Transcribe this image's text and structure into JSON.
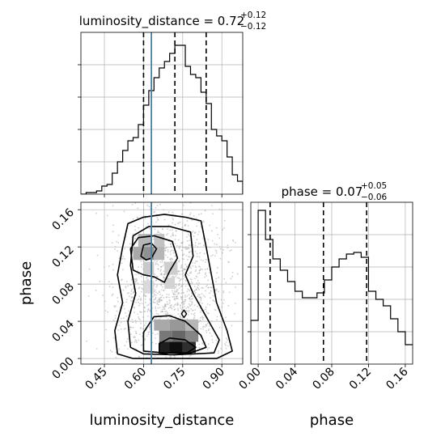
{
  "chart_data": {
    "type": "corner",
    "parameters": [
      "luminosity_distance",
      "phase"
    ],
    "truth": {
      "luminosity_distance": 0.63
    },
    "colors": {
      "truth_line": "#4c7fa0",
      "hist_line": "#000000",
      "quantile_line": "#000000",
      "grid": "#b0b0b0",
      "scatter": "#a6a6a6"
    },
    "grid": true,
    "panels": [
      {
        "id": "luminosity_distance_hist",
        "type": "histogram",
        "title": {
          "main": "luminosity_distance = 0.72",
          "superscript": "+0.12",
          "subscript": "−0.12"
        },
        "xlim": [
          0.36,
          0.98
        ],
        "ylim": [
          0,
          100
        ],
        "bin_edges": [
          0.36,
          0.38,
          0.4,
          0.42,
          0.44,
          0.46,
          0.48,
          0.5,
          0.52,
          0.54,
          0.56,
          0.58,
          0.6,
          0.62,
          0.64,
          0.66,
          0.68,
          0.7,
          0.72,
          0.74,
          0.76,
          0.78,
          0.8,
          0.82,
          0.84,
          0.86,
          0.88,
          0.9,
          0.92,
          0.94,
          0.96,
          0.98
        ],
        "counts": [
          0,
          1,
          1,
          2,
          5,
          6,
          13,
          20,
          27,
          33,
          35,
          43,
          55,
          64,
          72,
          78,
          82,
          87,
          92,
          92,
          79,
          74,
          72,
          63,
          56,
          40,
          36,
          33,
          23,
          12,
          8
        ],
        "quantiles": [
          0.6,
          0.72,
          0.84
        ]
      },
      {
        "id": "phase_hist",
        "type": "histogram",
        "title": {
          "main": "phase = 0.07",
          "superscript": "+0.05",
          "subscript": "−0.06"
        },
        "xlim": [
          -0.008,
          0.168
        ],
        "ylim": [
          0,
          100
        ],
        "bin_edges": [
          -0.008,
          -0.004,
          0.0,
          0.004,
          0.008,
          0.012,
          0.016,
          0.02,
          0.024,
          0.028,
          0.032,
          0.036,
          0.04,
          0.044,
          0.048,
          0.052,
          0.056,
          0.06,
          0.064,
          0.068,
          0.072,
          0.076,
          0.08,
          0.084,
          0.088,
          0.092,
          0.096,
          0.1,
          0.104,
          0.108,
          0.112,
          0.116,
          0.12,
          0.124,
          0.128,
          0.132,
          0.136,
          0.14,
          0.144,
          0.148,
          0.152,
          0.156,
          0.16,
          0.164,
          0.168
        ],
        "counts": [
          27,
          27,
          95,
          95,
          77,
          77,
          65,
          65,
          58,
          58,
          51,
          51,
          45,
          45,
          41,
          41,
          41,
          41,
          44,
          44,
          52,
          52,
          60,
          60,
          65,
          65,
          68,
          68,
          69,
          69,
          66,
          66,
          45,
          45,
          40,
          40,
          36,
          36,
          28,
          28,
          20,
          20,
          12,
          12
        ],
        "quantiles": [
          0.013,
          0.071,
          0.118
        ]
      },
      {
        "id": "joint",
        "type": "contour_2d",
        "xlim": [
          0.36,
          0.98
        ],
        "ylim": [
          -0.006,
          0.168
        ],
        "x_param": "luminosity_distance",
        "y_param": "phase"
      }
    ],
    "axes": {
      "luminosity_distance": {
        "label": "luminosity_distance",
        "ticks": [
          "0.45",
          "0.60",
          "0.75",
          "0.90"
        ],
        "tick_values": [
          0.45,
          0.6,
          0.75,
          0.9
        ]
      },
      "phase_y": {
        "label": "phase",
        "ticks": [
          "0.00",
          "0.04",
          "0.08",
          "0.12",
          "0.16"
        ],
        "tick_values": [
          0.0,
          0.04,
          0.08,
          0.12,
          0.16
        ]
      },
      "phase_x": {
        "label": "phase",
        "ticks": [
          "0.00",
          "0.04",
          "0.08",
          "0.12",
          "0.16"
        ],
        "tick_values": [
          0.0,
          0.04,
          0.08,
          0.12,
          0.16
        ]
      }
    }
  }
}
